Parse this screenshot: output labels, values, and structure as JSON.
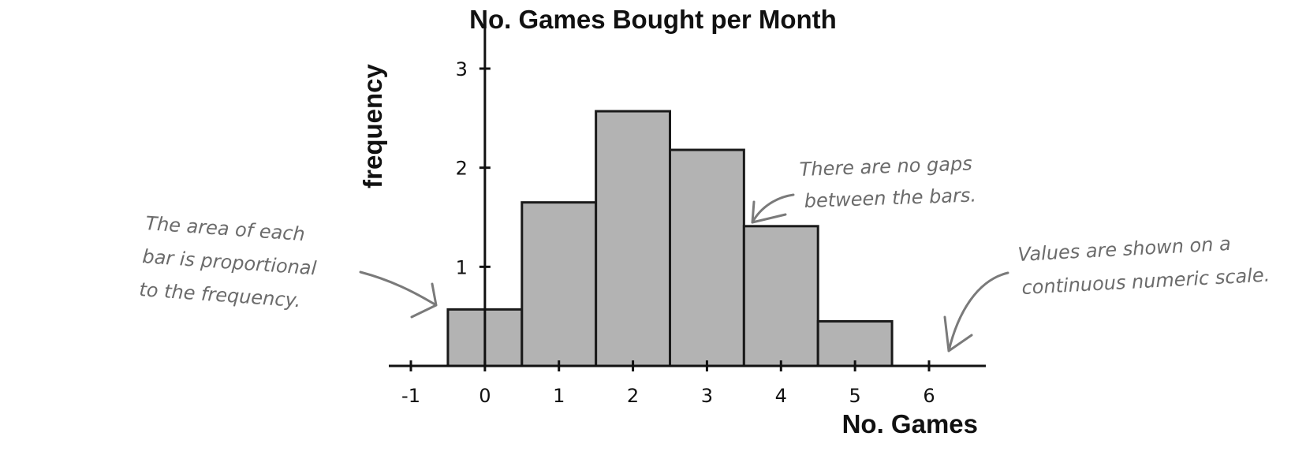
{
  "chart_data": {
    "type": "bar",
    "title": "No. Games Bought per Month",
    "xlabel": "No. Games",
    "ylabel": "frequency",
    "x": [
      0,
      1,
      2,
      3,
      4,
      5
    ],
    "values": [
      0.57,
      1.65,
      2.57,
      2.18,
      1.41,
      0.45
    ],
    "bin_width": 1,
    "xlim": [
      -1,
      6
    ],
    "ylim": [
      0,
      3
    ],
    "x_ticks": [
      -1,
      0,
      1,
      2,
      3,
      4,
      5,
      6
    ],
    "y_ticks": [
      1,
      2,
      3
    ],
    "grid": false,
    "annotations": [
      {
        "id": "area",
        "lines": [
          "The area of each",
          "bar is proportional",
          "to the frequency."
        ]
      },
      {
        "id": "gaps",
        "lines": [
          "There are no gaps",
          "between the bars."
        ]
      },
      {
        "id": "scale",
        "lines": [
          "Values are shown on a",
          "continuous numeric scale."
        ]
      }
    ]
  }
}
